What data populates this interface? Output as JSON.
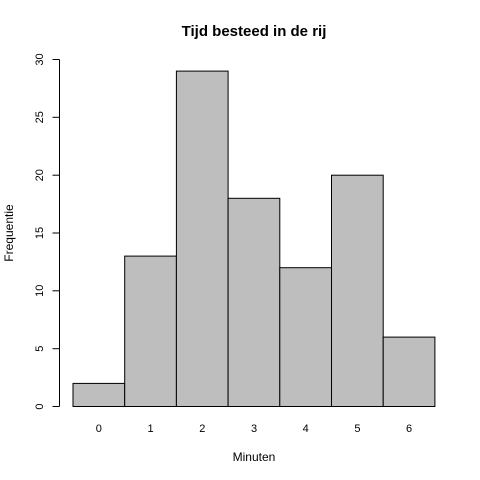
{
  "chart_data": {
    "type": "bar",
    "title": "Tijd besteed in de rij",
    "xlabel": "Minuten",
    "ylabel": "Frequentie",
    "categories": [
      "0",
      "1",
      "2",
      "3",
      "4",
      "5",
      "6"
    ],
    "values": [
      2,
      13,
      29,
      18,
      12,
      20,
      6
    ],
    "ylim": [
      0,
      30
    ],
    "yticks": [
      "0",
      "5",
      "10",
      "15",
      "20",
      "25",
      "30"
    ],
    "grid": false,
    "colors": {
      "bar_fill": "#bebebe",
      "bar_stroke": "#000000"
    }
  }
}
